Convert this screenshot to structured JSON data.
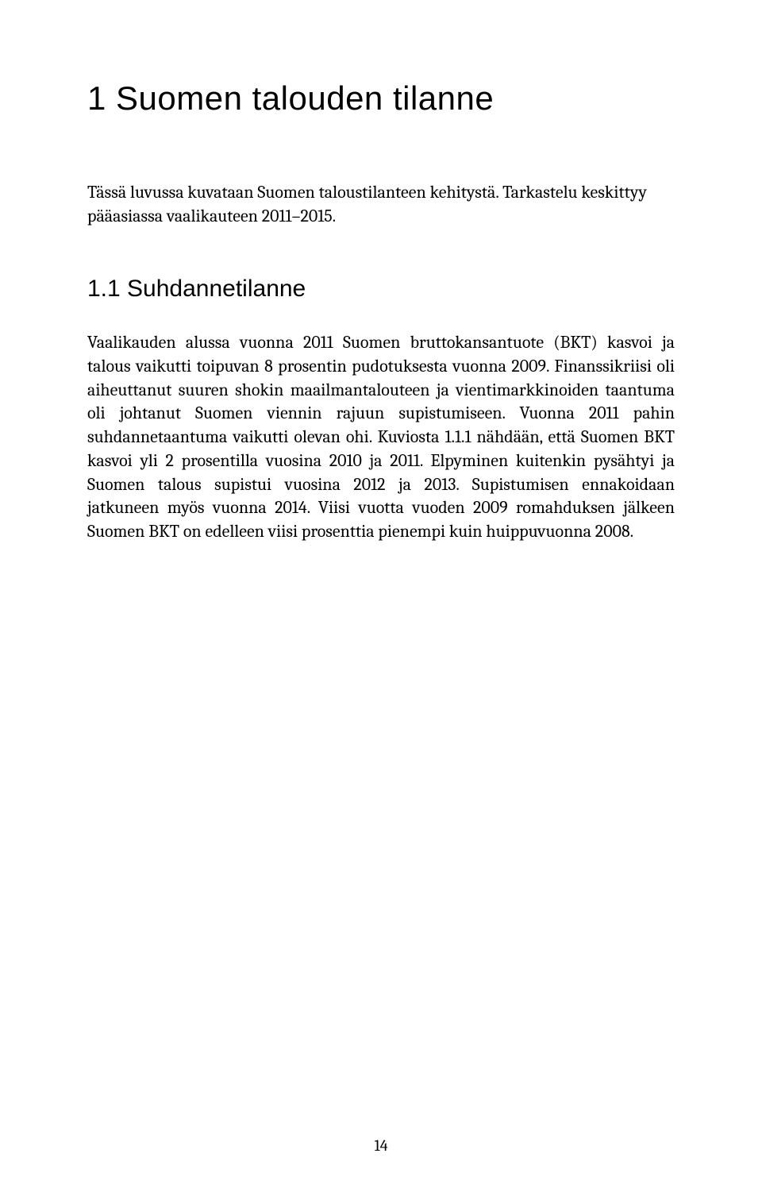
{
  "page": {
    "chapter_title": "1 Suomen talouden tilanne",
    "intro_paragraph": "Tässä luvussa kuvataan Suomen taloustilanteen kehitystä. Tarkastelu keskittyy pääasiassa vaalikauteen 2011–2015.",
    "section_title": "1.1 Suhdannetilanne",
    "body_paragraph": "Vaalikauden alussa vuonna 2011 Suomen bruttokansantuote (BKT) kasvoi ja talous vaikutti toipuvan 8 prosentin pudotuksesta vuonna 2009. Finanssikriisi oli aiheuttanut suuren shokin maailmantalouteen ja vientimarkkinoiden taantuma oli johtanut Suomen viennin rajuun supistumiseen. Vuonna 2011 pahin suhdannetaantuma vaikutti olevan ohi. Kuviosta 1.1.1 nähdään, että Suomen BKT kasvoi yli 2 prosentilla vuosina 2010 ja 2011. Elpyminen kuitenkin pysähtyi ja Suomen talous supistui vuosina 2012 ja 2013. Supistumisen ennakoidaan jatkuneen myös vuonna 2014. Viisi vuotta vuoden 2009 romahduksen jälkeen Suomen BKT on edelleen viisi prosenttia pienempi kuin huippuvuonna 2008.",
    "page_number": "14"
  },
  "style": {
    "background_color": "#ffffff",
    "text_color": "#000000",
    "chapter_title_fontsize": 42,
    "section_title_fontsize": 30,
    "body_fontsize": 22,
    "page_number_fontsize": 20,
    "line_height": 1.35,
    "body_font": "Cambria, Georgia, serif",
    "heading_font": "Segoe UI, Helvetica Neue, Arial, sans-serif"
  }
}
